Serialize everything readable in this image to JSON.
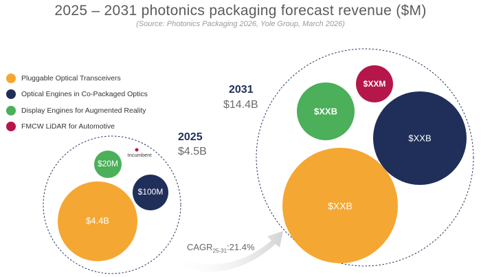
{
  "title": "2025 – 2031 photonics packaging forecast revenue ($M)",
  "subtitle": "(Source: Photonics Packaging 2026, Yole Group, March 2026)",
  "colors": {
    "pluggable": "#f5a733",
    "engines_cpo": "#1f2f5a",
    "display_ar": "#4caf5a",
    "lidar": "#b5174a"
  },
  "legend": [
    {
      "label": "Pluggable Optical Transceivers",
      "color": "#f5a733"
    },
    {
      "label": "Optical Engines in Co-Packaged Optics",
      "color": "#1f2f5a"
    },
    {
      "label": "Display Engines for Augmented Reality",
      "color": "#4caf5a"
    },
    {
      "label": "FMCW LiDAR for Automotive",
      "color": "#b5174a"
    }
  ],
  "chart_data": {
    "type": "bubble",
    "title": "2025 – 2031 photonics packaging forecast revenue ($M)",
    "groups": [
      {
        "year": "2025",
        "total_label": "$4.5B",
        "total_value_musd": 4500,
        "bubbles": [
          {
            "segment": "Pluggable Optical Transceivers",
            "label": "$4.4B",
            "value_musd": 4400
          },
          {
            "segment": "Optical Engines in Co-Packaged Optics",
            "label": "$100M",
            "value_musd": 100
          },
          {
            "segment": "Display Engines for Augmented Reality",
            "label": "$20M",
            "value_musd": 20
          },
          {
            "segment": "FMCW LiDAR for Automotive",
            "label": "Incumbent",
            "value_musd": 0
          }
        ]
      },
      {
        "year": "2031",
        "total_label": "$14.4B",
        "total_value_musd": 14400,
        "bubbles": [
          {
            "segment": "Pluggable Optical Transceivers",
            "label": "$XXB"
          },
          {
            "segment": "Optical Engines in Co-Packaged Optics",
            "label": "$XXB"
          },
          {
            "segment": "Display Engines for Augmented Reality",
            "label": "$XXB"
          },
          {
            "segment": "FMCW LiDAR for Automotive",
            "label": "$XXM"
          }
        ]
      }
    ],
    "cagr": {
      "label": "CAGR",
      "period": "25-31",
      "value": "21.4%"
    }
  }
}
